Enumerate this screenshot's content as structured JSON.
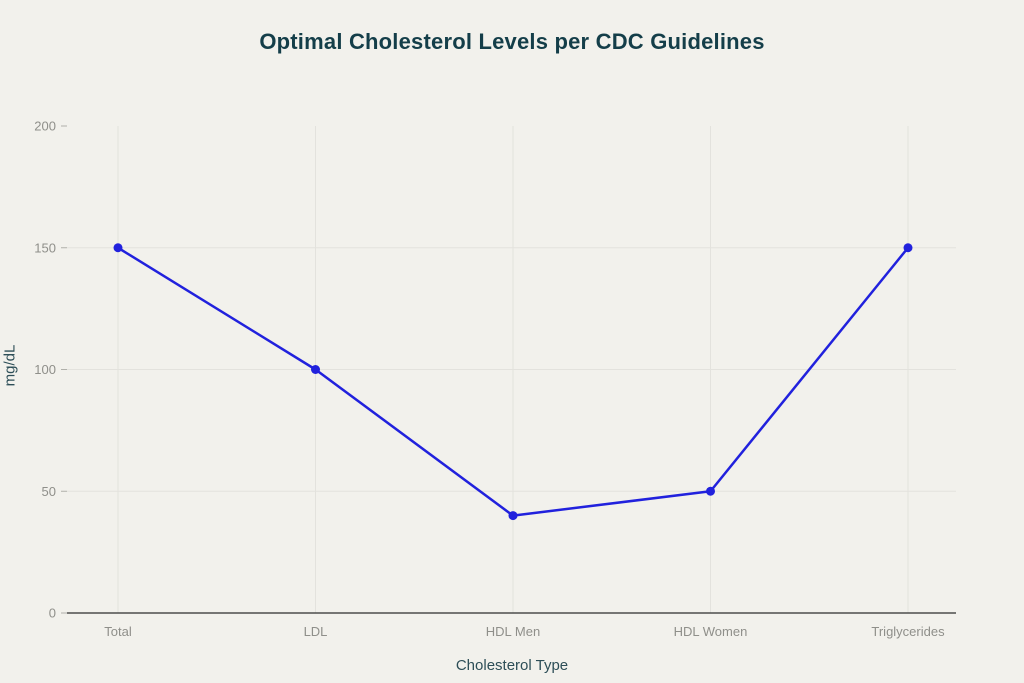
{
  "page": {
    "background_color": "#f2f1ec"
  },
  "chart": {
    "title_color": "#143e49",
    "axis_title_color": "#2d4e57",
    "tick_label_color": "#8f8f8a",
    "gridline_color": "#e3e2dd",
    "tick_mark_color": "#b0b0aa",
    "axis_line_color": "#4d4d4d",
    "line_color": "#2121dd",
    "point_color": "#2121dd"
  },
  "chart_data": {
    "type": "line",
    "title": "Optimal Cholesterol Levels per CDC Guidelines",
    "xlabel": "Cholesterol Type",
    "ylabel": "mg/dL",
    "categories": [
      "Total",
      "LDL",
      "HDL Men",
      "HDL Women",
      "Triglycerides"
    ],
    "values": [
      150,
      100,
      40,
      50,
      150
    ],
    "ylim": [
      0,
      200
    ],
    "yticks": [
      0,
      50,
      100,
      150,
      200
    ],
    "horizontal_gridlines_at": [
      50,
      100,
      150
    ],
    "vertical_gridlines": "one per category",
    "grid": true,
    "legend": false
  }
}
